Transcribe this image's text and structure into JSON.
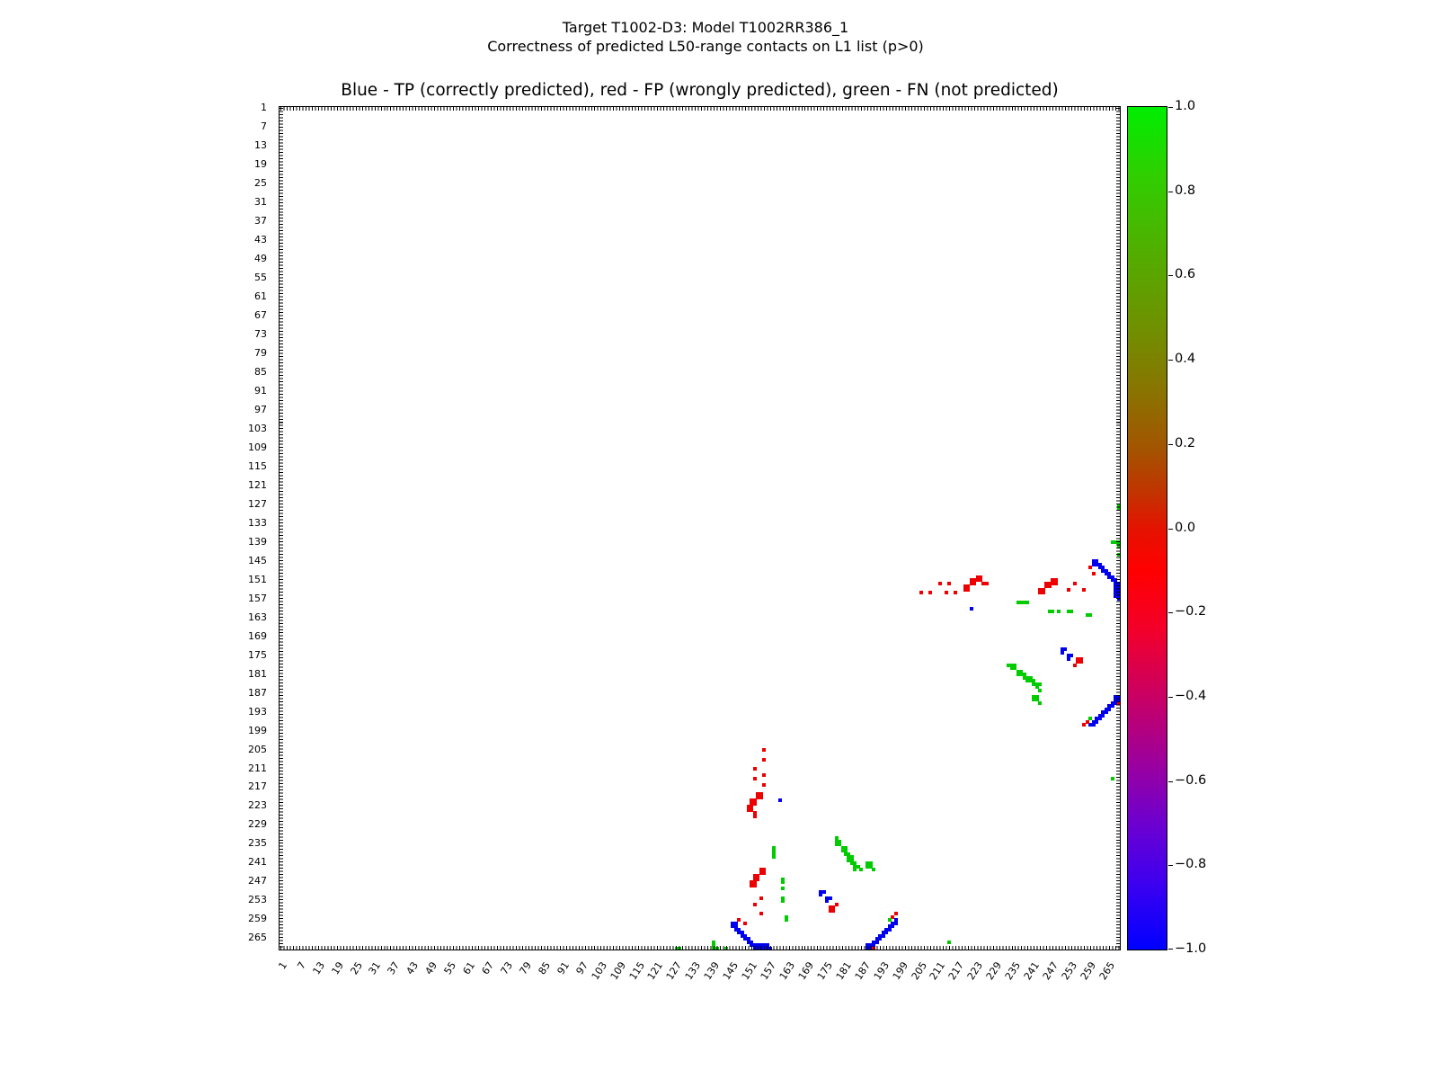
{
  "figure": {
    "suptitle_line1": "Target T1002-D3: Model T1002RR386_1",
    "suptitle_line2": "Correctness of predicted L50-range contacts on L1 list (p>0)",
    "axes_title": "Blue - TP (correctly predicted), red - FP (wrongly predicted), green - FN (not predicted)"
  },
  "chart_data": {
    "type": "heatmap",
    "title": "Blue - TP (correctly predicted), red - FP (wrongly predicted), green - FN (not predicted)",
    "xlabel": "",
    "ylabel": "",
    "x_range": [
      1,
      268
    ],
    "y_range": [
      1,
      268
    ],
    "y_inverted": true,
    "grid": false,
    "tick_step": 6,
    "tick_labels": [
      "1",
      "7",
      "13",
      "19",
      "25",
      "31",
      "37",
      "43",
      "49",
      "55",
      "61",
      "67",
      "73",
      "79",
      "85",
      "91",
      "97",
      "103",
      "109",
      "115",
      "121",
      "127",
      "133",
      "139",
      "145",
      "151",
      "157",
      "163",
      "169",
      "175",
      "181",
      "187",
      "193",
      "199",
      "205",
      "211",
      "217",
      "223",
      "229",
      "235",
      "241",
      "247",
      "253",
      "259",
      "265"
    ],
    "legend": [
      {
        "name": "TP",
        "meaning": "correctly predicted",
        "color_word": "blue"
      },
      {
        "name": "FP",
        "meaning": "wrongly predicted",
        "color_word": "red"
      },
      {
        "name": "FN",
        "meaning": "not predicted",
        "color_word": "green"
      }
    ],
    "colorbar": {
      "ticks": [
        "1.0",
        "0.8",
        "0.6",
        "0.4",
        "0.2",
        "0.0",
        "−0.2",
        "−0.4",
        "−0.6",
        "−0.8",
        "−1.0"
      ],
      "range": [
        -1.0,
        1.0
      ],
      "gradient": [
        [
          "#00ee00",
          0
        ],
        [
          "#2fcf00",
          8
        ],
        [
          "#54ab00",
          18
        ],
        [
          "#6f9100",
          26
        ],
        [
          "#8a7300",
          34
        ],
        [
          "#a55200",
          41
        ],
        [
          "#c33200",
          46
        ],
        [
          "#e41300",
          50
        ],
        [
          "#ff0000",
          55
        ],
        [
          "#f3002a",
          62
        ],
        [
          "#c90064",
          70
        ],
        [
          "#9b009e",
          78
        ],
        [
          "#6d00cf",
          85
        ],
        [
          "#3e00ef",
          92
        ],
        [
          "#0000ff",
          100
        ]
      ]
    },
    "series": [
      {
        "name": "TP",
        "color": "#0000ee",
        "points": [
          [
            260,
            145
          ],
          [
            261,
            145
          ],
          [
            260,
            146
          ],
          [
            261,
            146
          ],
          [
            262,
            146
          ],
          [
            262,
            147
          ],
          [
            263,
            147
          ],
          [
            263,
            148
          ],
          [
            264,
            148
          ],
          [
            264,
            149
          ],
          [
            265,
            149
          ],
          [
            265,
            150
          ],
          [
            266,
            150
          ],
          [
            266,
            151
          ],
          [
            267,
            151
          ],
          [
            267,
            152
          ],
          [
            268,
            152
          ],
          [
            267,
            153
          ],
          [
            268,
            153
          ],
          [
            267,
            154
          ],
          [
            268,
            154
          ],
          [
            267,
            155
          ],
          [
            268,
            155
          ],
          [
            267,
            156
          ],
          [
            268,
            156
          ],
          [
            268,
            157
          ],
          [
            221,
            160
          ],
          [
            250,
            173
          ],
          [
            251,
            173
          ],
          [
            250,
            174
          ],
          [
            252,
            175
          ],
          [
            253,
            175
          ],
          [
            252,
            176
          ],
          [
            267,
            188
          ],
          [
            268,
            188
          ],
          [
            267,
            189
          ],
          [
            268,
            189
          ],
          [
            266,
            190
          ],
          [
            267,
            190
          ],
          [
            265,
            191
          ],
          [
            266,
            191
          ],
          [
            264,
            192
          ],
          [
            265,
            192
          ],
          [
            263,
            193
          ],
          [
            264,
            193
          ],
          [
            262,
            194
          ],
          [
            263,
            194
          ],
          [
            261,
            195
          ],
          [
            262,
            195
          ],
          [
            260,
            196
          ],
          [
            261,
            196
          ],
          [
            259,
            197
          ],
          [
            260,
            197
          ],
          [
            160,
            221
          ],
          [
            173,
            250
          ],
          [
            174,
            250
          ],
          [
            173,
            251
          ],
          [
            175,
            252
          ],
          [
            176,
            252
          ],
          [
            175,
            253
          ],
          [
            145,
            260
          ],
          [
            146,
            260
          ],
          [
            145,
            261
          ],
          [
            146,
            261
          ],
          [
            146,
            262
          ],
          [
            147,
            262
          ],
          [
            147,
            263
          ],
          [
            148,
            263
          ],
          [
            148,
            264
          ],
          [
            149,
            264
          ],
          [
            149,
            265
          ],
          [
            150,
            265
          ],
          [
            150,
            266
          ],
          [
            151,
            266
          ],
          [
            151,
            267
          ],
          [
            152,
            267
          ],
          [
            153,
            267
          ],
          [
            154,
            267
          ],
          [
            155,
            267
          ],
          [
            156,
            267
          ],
          [
            152,
            268
          ],
          [
            153,
            268
          ],
          [
            154,
            268
          ],
          [
            155,
            268
          ],
          [
            156,
            268
          ],
          [
            157,
            268
          ],
          [
            188,
            267
          ],
          [
            188,
            268
          ],
          [
            189,
            267
          ],
          [
            189,
            268
          ],
          [
            190,
            266
          ],
          [
            190,
            267
          ],
          [
            191,
            265
          ],
          [
            191,
            266
          ],
          [
            192,
            264
          ],
          [
            192,
            265
          ],
          [
            193,
            263
          ],
          [
            193,
            264
          ],
          [
            194,
            262
          ],
          [
            194,
            263
          ],
          [
            195,
            261
          ],
          [
            195,
            262
          ],
          [
            196,
            260
          ],
          [
            196,
            261
          ],
          [
            197,
            259
          ],
          [
            197,
            260
          ]
        ]
      },
      {
        "name": "FP",
        "color": "#ee0000",
        "points": [
          [
            205,
            155
          ],
          [
            208,
            155
          ],
          [
            211,
            152
          ],
          [
            213,
            155
          ],
          [
            214,
            152
          ],
          [
            216,
            155
          ],
          [
            219,
            153
          ],
          [
            220,
            153
          ],
          [
            219,
            154
          ],
          [
            220,
            154
          ],
          [
            221,
            151
          ],
          [
            221,
            152
          ],
          [
            222,
            151
          ],
          [
            222,
            152
          ],
          [
            223,
            150
          ],
          [
            223,
            151
          ],
          [
            224,
            150
          ],
          [
            224,
            151
          ],
          [
            225,
            152
          ],
          [
            226,
            152
          ],
          [
            243,
            154
          ],
          [
            244,
            154
          ],
          [
            243,
            155
          ],
          [
            244,
            155
          ],
          [
            245,
            152
          ],
          [
            245,
            153
          ],
          [
            246,
            152
          ],
          [
            246,
            153
          ],
          [
            247,
            151
          ],
          [
            247,
            152
          ],
          [
            248,
            151
          ],
          [
            248,
            152
          ],
          [
            252,
            154
          ],
          [
            254,
            152
          ],
          [
            257,
            154
          ],
          [
            259,
            147
          ],
          [
            260,
            149
          ],
          [
            254,
            178
          ],
          [
            255,
            176
          ],
          [
            255,
            177
          ],
          [
            256,
            176
          ],
          [
            256,
            177
          ],
          [
            268,
            190
          ],
          [
            258,
            196
          ],
          [
            257,
            197
          ],
          [
            155,
            205
          ],
          [
            155,
            208
          ],
          [
            152,
            211
          ],
          [
            155,
            213
          ],
          [
            152,
            214
          ],
          [
            155,
            216
          ],
          [
            153,
            219
          ],
          [
            153,
            220
          ],
          [
            154,
            219
          ],
          [
            154,
            220
          ],
          [
            151,
            221
          ],
          [
            152,
            221
          ],
          [
            151,
            222
          ],
          [
            152,
            222
          ],
          [
            150,
            223
          ],
          [
            151,
            223
          ],
          [
            150,
            224
          ],
          [
            151,
            224
          ],
          [
            152,
            225
          ],
          [
            152,
            226
          ],
          [
            154,
            243
          ],
          [
            155,
            243
          ],
          [
            154,
            244
          ],
          [
            155,
            244
          ],
          [
            152,
            245
          ],
          [
            153,
            245
          ],
          [
            152,
            246
          ],
          [
            153,
            246
          ],
          [
            151,
            247
          ],
          [
            152,
            247
          ],
          [
            151,
            248
          ],
          [
            152,
            248
          ],
          [
            154,
            252
          ],
          [
            152,
            254
          ],
          [
            154,
            257
          ],
          [
            147,
            259
          ],
          [
            149,
            260
          ],
          [
            178,
            254
          ],
          [
            176,
            255
          ],
          [
            177,
            255
          ],
          [
            176,
            256
          ],
          [
            177,
            256
          ],
          [
            190,
            268
          ],
          [
            196,
            258
          ],
          [
            197,
            257
          ]
        ]
      },
      {
        "name": "FN",
        "color": "#00cc00",
        "points": [
          [
            266,
            139
          ],
          [
            267,
            139
          ],
          [
            268,
            139
          ],
          [
            268,
            140
          ],
          [
            268,
            143
          ],
          [
            236,
            158
          ],
          [
            237,
            158
          ],
          [
            238,
            158
          ],
          [
            239,
            158
          ],
          [
            246,
            161
          ],
          [
            247,
            161
          ],
          [
            249,
            161
          ],
          [
            252,
            161
          ],
          [
            253,
            161
          ],
          [
            258,
            162
          ],
          [
            259,
            162
          ],
          [
            233,
            178
          ],
          [
            234,
            178
          ],
          [
            235,
            178
          ],
          [
            234,
            179
          ],
          [
            235,
            179
          ],
          [
            236,
            180
          ],
          [
            237,
            180
          ],
          [
            236,
            181
          ],
          [
            237,
            181
          ],
          [
            238,
            181
          ],
          [
            238,
            182
          ],
          [
            239,
            182
          ],
          [
            240,
            182
          ],
          [
            239,
            183
          ],
          [
            240,
            183
          ],
          [
            241,
            183
          ],
          [
            241,
            184
          ],
          [
            242,
            184
          ],
          [
            243,
            184
          ],
          [
            242,
            185
          ],
          [
            243,
            186
          ],
          [
            241,
            188
          ],
          [
            242,
            188
          ],
          [
            241,
            189
          ],
          [
            242,
            189
          ],
          [
            243,
            190
          ],
          [
            259,
            195
          ],
          [
            266,
            214
          ],
          [
            268,
            127
          ],
          [
            268,
            128
          ],
          [
            139,
            266
          ],
          [
            139,
            267
          ],
          [
            139,
            268
          ],
          [
            140,
            268
          ],
          [
            143,
            268
          ],
          [
            158,
            236
          ],
          [
            158,
            237
          ],
          [
            158,
            238
          ],
          [
            158,
            239
          ],
          [
            161,
            246
          ],
          [
            161,
            247
          ],
          [
            161,
            249
          ],
          [
            161,
            252
          ],
          [
            161,
            253
          ],
          [
            162,
            258
          ],
          [
            162,
            259
          ],
          [
            178,
            233
          ],
          [
            178,
            234
          ],
          [
            178,
            235
          ],
          [
            179,
            234
          ],
          [
            179,
            235
          ],
          [
            180,
            236
          ],
          [
            181,
            236
          ],
          [
            180,
            237
          ],
          [
            181,
            237
          ],
          [
            181,
            238
          ],
          [
            182,
            238
          ],
          [
            182,
            239
          ],
          [
            183,
            239
          ],
          [
            182,
            240
          ],
          [
            183,
            240
          ],
          [
            183,
            241
          ],
          [
            184,
            241
          ],
          [
            184,
            242
          ],
          [
            185,
            242
          ],
          [
            184,
            243
          ],
          [
            186,
            243
          ],
          [
            188,
            241
          ],
          [
            189,
            241
          ],
          [
            188,
            242
          ],
          [
            189,
            242
          ],
          [
            190,
            243
          ],
          [
            195,
            259
          ],
          [
            214,
            266
          ],
          [
            127,
            268
          ],
          [
            128,
            268
          ]
        ]
      }
    ]
  }
}
